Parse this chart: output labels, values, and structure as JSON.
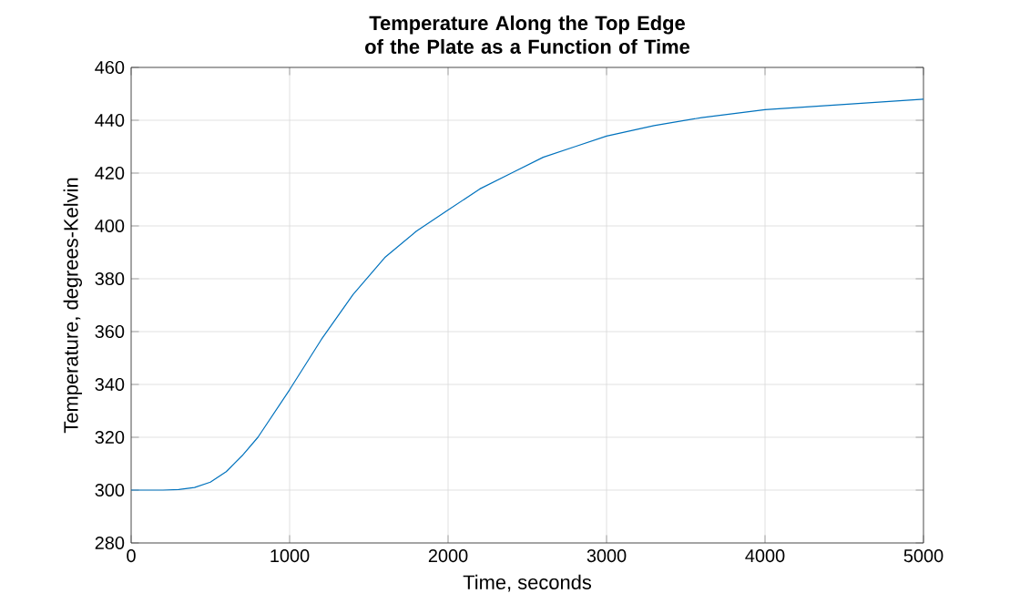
{
  "chart_data": {
    "type": "line",
    "title": "Temperature Along the Top Edge of the Plate as a Function of Time",
    "xlabel": "Time, seconds",
    "ylabel": "Temperature, degrees-Kelvin",
    "x": [
      0,
      200,
      300,
      400,
      500,
      600,
      700,
      800,
      900,
      1000,
      1200,
      1400,
      1600,
      1800,
      2000,
      2200,
      2400,
      2600,
      2800,
      3000,
      3300,
      3600,
      4000,
      4500,
      5000
    ],
    "series": [
      {
        "color": "#0072bd",
        "values": [
          300,
          300,
          300.2,
          301,
          303,
          307,
          313,
          320,
          329,
          338,
          357,
          374,
          388,
          398,
          406,
          414,
          420,
          426,
          430,
          434,
          438,
          441,
          444,
          446,
          448
        ]
      }
    ],
    "xlim": [
      0,
      5000
    ],
    "ylim": [
      280,
      460
    ],
    "xticks": [
      0,
      1000,
      2000,
      3000,
      4000,
      5000
    ],
    "yticks": [
      280,
      300,
      320,
      340,
      360,
      380,
      400,
      420,
      440,
      460
    ],
    "grid": true
  }
}
